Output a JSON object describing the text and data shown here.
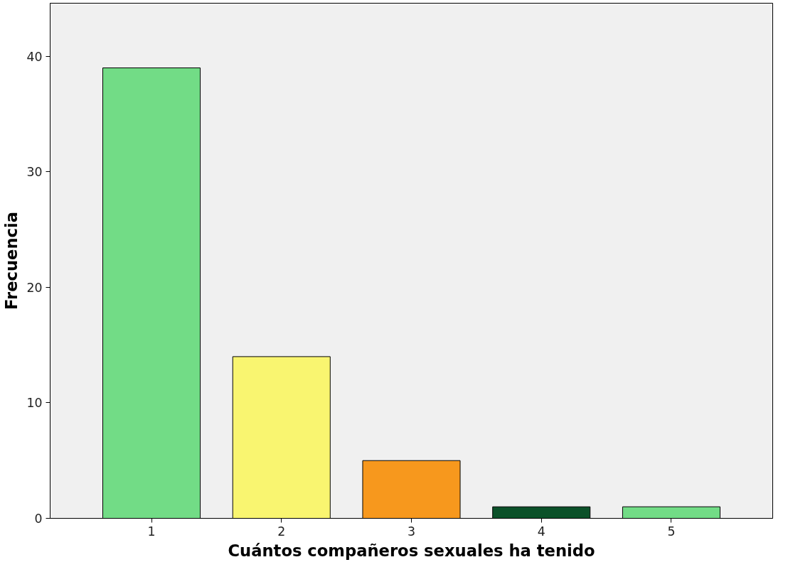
{
  "chart_data": {
    "type": "bar",
    "xlabel": "Cuántos compañeros sexuales ha tenido",
    "ylabel": "Frecuencia",
    "categories": [
      "1",
      "2",
      "3",
      "4",
      "5"
    ],
    "values": [
      39,
      14,
      5,
      1,
      1
    ],
    "colors": [
      "#72dc86",
      "#f9f570",
      "#f7981d",
      "#0b5129",
      "#72dc86"
    ],
    "ylim": [
      0,
      44.6
    ],
    "yticks": [
      0,
      10,
      20,
      30,
      40
    ],
    "grid": false
  }
}
